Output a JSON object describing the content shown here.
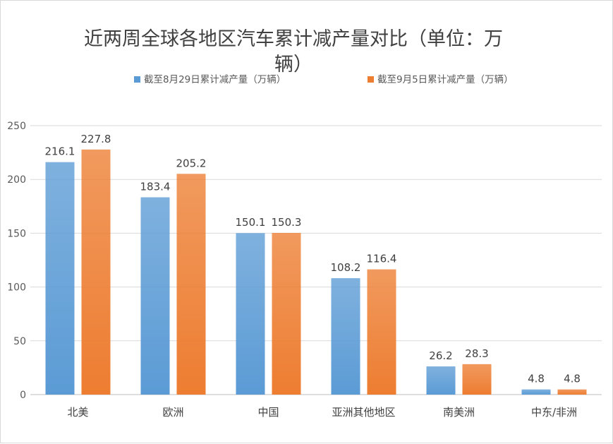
{
  "chart_data": {
    "type": "bar",
    "title": "近两周全球各地区汽车累计减产量对比（单位：万辆）",
    "title_lines": [
      "近两周全球各地区汽车累计减产量对比（单位：万",
      "辆）"
    ],
    "xlabel": "",
    "ylabel": "",
    "categories": [
      "北美",
      "欧洲",
      "中国",
      "亚洲其他地区",
      "南美洲",
      "中东/非洲"
    ],
    "series": [
      {
        "name": "截至8月29日累计减产量（万辆）",
        "values": [
          216.1,
          183.4,
          150.1,
          108.2,
          26.2,
          4.8
        ],
        "labels": [
          "216.1",
          "183.4",
          "150.1",
          "108.2",
          "26.2",
          "4.8"
        ],
        "color": "#5B9BD5"
      },
      {
        "name": "截至9月5日累计减产量（万辆）",
        "values": [
          227.8,
          205.2,
          150.3,
          116.4,
          28.3,
          4.8
        ],
        "labels": [
          "227.8",
          "205.2",
          "150.3",
          "116.4",
          "28.3",
          "4.8"
        ],
        "color": "#ED7D31"
      }
    ],
    "ylim": [
      0,
      250
    ],
    "yticks": [
      0,
      50,
      100,
      150,
      200,
      250
    ],
    "grid": true,
    "legend_position": "top"
  }
}
